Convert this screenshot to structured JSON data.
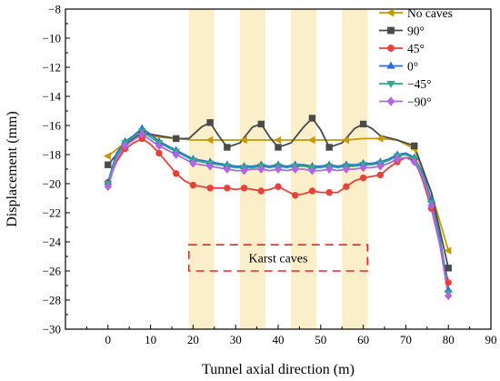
{
  "chart_data": {
    "type": "line",
    "xlabel": "Tunnel axial direction (m)",
    "ylabel": "Displacement (mm)",
    "xlim": [
      -10,
      90
    ],
    "ylim": [
      -30,
      -8
    ],
    "xticks": [
      0,
      10,
      20,
      30,
      40,
      50,
      60,
      70,
      80,
      90
    ],
    "yticks": [
      -30,
      -28,
      -26,
      -24,
      -22,
      -20,
      -18,
      -16,
      -14,
      -12,
      -10,
      -8
    ],
    "grid": false,
    "legend": "top-right",
    "shaded_bands": [
      [
        19,
        25
      ],
      [
        31,
        37
      ],
      [
        43,
        49
      ],
      [
        55,
        61
      ]
    ],
    "band_color": "#fbefc9",
    "annotation": {
      "text": "Karst caves",
      "x0": 19,
      "x1": 61,
      "y0": -26,
      "y1": -24.2,
      "color": "#e8262a"
    },
    "series": [
      {
        "name": "No caves",
        "color": "#c59a07",
        "marker": "tri-left",
        "x": [
          0,
          4,
          8,
          12,
          16,
          20,
          24,
          28,
          32,
          36,
          40,
          44,
          48,
          52,
          56,
          60,
          64,
          68,
          72,
          76,
          80
        ],
        "y": [
          -18.1,
          -17.2,
          -16.6,
          -16.8,
          -16.9,
          -17.0,
          -17.0,
          -17.0,
          -17.0,
          -17.0,
          -17.0,
          -17.0,
          -17.0,
          -17.0,
          -17.0,
          -16.9,
          -16.9,
          -17.0,
          -17.6,
          -20.6,
          -24.6
        ],
        "markers_x": [
          0,
          8,
          16,
          24,
          32,
          40,
          48,
          56,
          64,
          72,
          80
        ]
      },
      {
        "name": "90°",
        "color": "#4a4a4a",
        "marker": "square",
        "x": [
          0,
          4,
          8,
          12,
          16,
          19,
          22,
          24,
          26,
          28,
          31,
          34,
          36,
          38,
          40,
          43,
          46,
          48,
          50,
          52,
          55,
          58,
          60,
          62,
          64,
          68,
          72,
          76,
          80
        ],
        "y": [
          -18.7,
          -17.3,
          -16.5,
          -16.7,
          -16.9,
          -16.9,
          -16.1,
          -15.8,
          -16.7,
          -17.5,
          -17.2,
          -16.1,
          -15.9,
          -16.8,
          -17.5,
          -17.2,
          -16.1,
          -15.5,
          -16.3,
          -17.5,
          -17.2,
          -16.2,
          -15.9,
          -16.2,
          -16.7,
          -17.0,
          -17.4,
          -20.6,
          -25.8
        ],
        "markers_x": [
          0,
          8,
          16,
          24,
          28,
          36,
          40,
          48,
          52,
          60,
          72,
          80
        ]
      },
      {
        "name": "45°",
        "color": "#e8403a",
        "marker": "circle",
        "x": [
          0,
          2,
          4,
          6,
          8,
          10,
          12,
          14,
          16,
          18,
          20,
          22,
          24,
          26,
          28,
          30,
          32,
          34,
          36,
          38,
          40,
          42,
          44,
          46,
          48,
          50,
          52,
          54,
          56,
          58,
          60,
          62,
          64,
          66,
          68,
          70,
          72,
          74,
          76,
          78,
          80
        ],
        "y": [
          -19.9,
          -18.5,
          -17.6,
          -17.2,
          -16.9,
          -17.3,
          -17.9,
          -18.6,
          -19.3,
          -19.8,
          -20.1,
          -20.2,
          -20.3,
          -20.3,
          -20.3,
          -20.4,
          -20.3,
          -20.4,
          -20.5,
          -20.4,
          -20.2,
          -20.5,
          -20.8,
          -20.7,
          -20.5,
          -20.6,
          -20.6,
          -20.6,
          -20.2,
          -19.8,
          -19.6,
          -19.5,
          -19.4,
          -18.9,
          -18.5,
          -18.2,
          -18.3,
          -19.8,
          -21.7,
          -24.2,
          -26.8
        ],
        "markers_x": [
          0,
          4,
          8,
          12,
          16,
          20,
          24,
          28,
          32,
          36,
          40,
          44,
          48,
          52,
          56,
          60,
          64,
          68,
          72,
          76,
          80
        ]
      },
      {
        "name": "0°",
        "color": "#2d6fd6",
        "marker": "triangle-up",
        "x": [
          0,
          2,
          4,
          6,
          8,
          10,
          12,
          14,
          16,
          18,
          20,
          22,
          24,
          26,
          28,
          30,
          32,
          34,
          36,
          38,
          40,
          42,
          44,
          46,
          48,
          50,
          52,
          54,
          56,
          58,
          60,
          62,
          64,
          66,
          68,
          70,
          72,
          74,
          76,
          78,
          80
        ],
        "y": [
          -19.9,
          -17.9,
          -17.1,
          -16.7,
          -16.2,
          -16.6,
          -17.1,
          -17.4,
          -17.7,
          -18.0,
          -18.3,
          -18.4,
          -18.5,
          -18.6,
          -18.7,
          -18.8,
          -18.8,
          -18.8,
          -18.7,
          -18.8,
          -18.7,
          -18.8,
          -18.7,
          -18.7,
          -18.8,
          -18.8,
          -18.7,
          -18.8,
          -18.7,
          -18.7,
          -18.6,
          -18.6,
          -18.5,
          -18.3,
          -18.0,
          -17.9,
          -18.2,
          -19.3,
          -21.1,
          -23.7,
          -27.3
        ],
        "markers_x": [
          0,
          4,
          8,
          12,
          16,
          20,
          24,
          28,
          32,
          36,
          40,
          44,
          48,
          52,
          56,
          60,
          64,
          68,
          72,
          76,
          80
        ]
      },
      {
        "name": "−45°",
        "color": "#2aab8a",
        "marker": "triangle-down",
        "x": [
          0,
          2,
          4,
          6,
          8,
          10,
          12,
          14,
          16,
          18,
          20,
          22,
          24,
          26,
          28,
          30,
          32,
          34,
          36,
          38,
          40,
          42,
          44,
          46,
          48,
          50,
          52,
          54,
          56,
          58,
          60,
          62,
          64,
          66,
          68,
          70,
          72,
          74,
          76,
          78,
          80
        ],
        "y": [
          -20.0,
          -18.1,
          -17.2,
          -16.8,
          -16.4,
          -16.8,
          -17.2,
          -17.5,
          -17.8,
          -18.1,
          -18.4,
          -18.5,
          -18.6,
          -18.7,
          -18.8,
          -18.9,
          -18.9,
          -18.9,
          -18.8,
          -18.9,
          -18.8,
          -18.9,
          -18.8,
          -18.8,
          -18.9,
          -18.9,
          -18.8,
          -18.9,
          -18.8,
          -18.8,
          -18.7,
          -18.7,
          -18.6,
          -18.4,
          -18.1,
          -18.0,
          -18.3,
          -19.4,
          -21.3,
          -24.0,
          -27.5
        ],
        "markers_x": [
          0,
          4,
          8,
          12,
          16,
          20,
          24,
          28,
          32,
          36,
          40,
          44,
          48,
          52,
          56,
          60,
          64,
          68,
          72,
          76,
          80
        ]
      },
      {
        "name": "−90°",
        "color": "#b066e0",
        "marker": "diamond",
        "x": [
          0,
          2,
          4,
          6,
          8,
          10,
          12,
          14,
          16,
          18,
          20,
          22,
          24,
          26,
          28,
          30,
          32,
          34,
          36,
          38,
          40,
          42,
          44,
          46,
          48,
          50,
          52,
          54,
          56,
          58,
          60,
          62,
          64,
          66,
          68,
          70,
          72,
          74,
          76,
          78,
          80
        ],
        "y": [
          -20.2,
          -18.3,
          -17.4,
          -17.0,
          -16.6,
          -17.0,
          -17.4,
          -17.7,
          -18.0,
          -18.3,
          -18.6,
          -18.7,
          -18.8,
          -18.9,
          -19.0,
          -19.1,
          -19.1,
          -19.0,
          -19.0,
          -19.1,
          -19.0,
          -19.1,
          -19.0,
          -19.0,
          -19.1,
          -19.1,
          -19.0,
          -19.1,
          -19.0,
          -19.0,
          -18.9,
          -18.9,
          -18.8,
          -18.6,
          -18.3,
          -18.2,
          -18.5,
          -19.6,
          -21.5,
          -24.2,
          -27.7
        ],
        "markers_x": [
          0,
          4,
          8,
          12,
          16,
          20,
          24,
          28,
          32,
          36,
          40,
          44,
          48,
          52,
          56,
          60,
          64,
          68,
          72,
          76,
          80
        ]
      }
    ]
  }
}
